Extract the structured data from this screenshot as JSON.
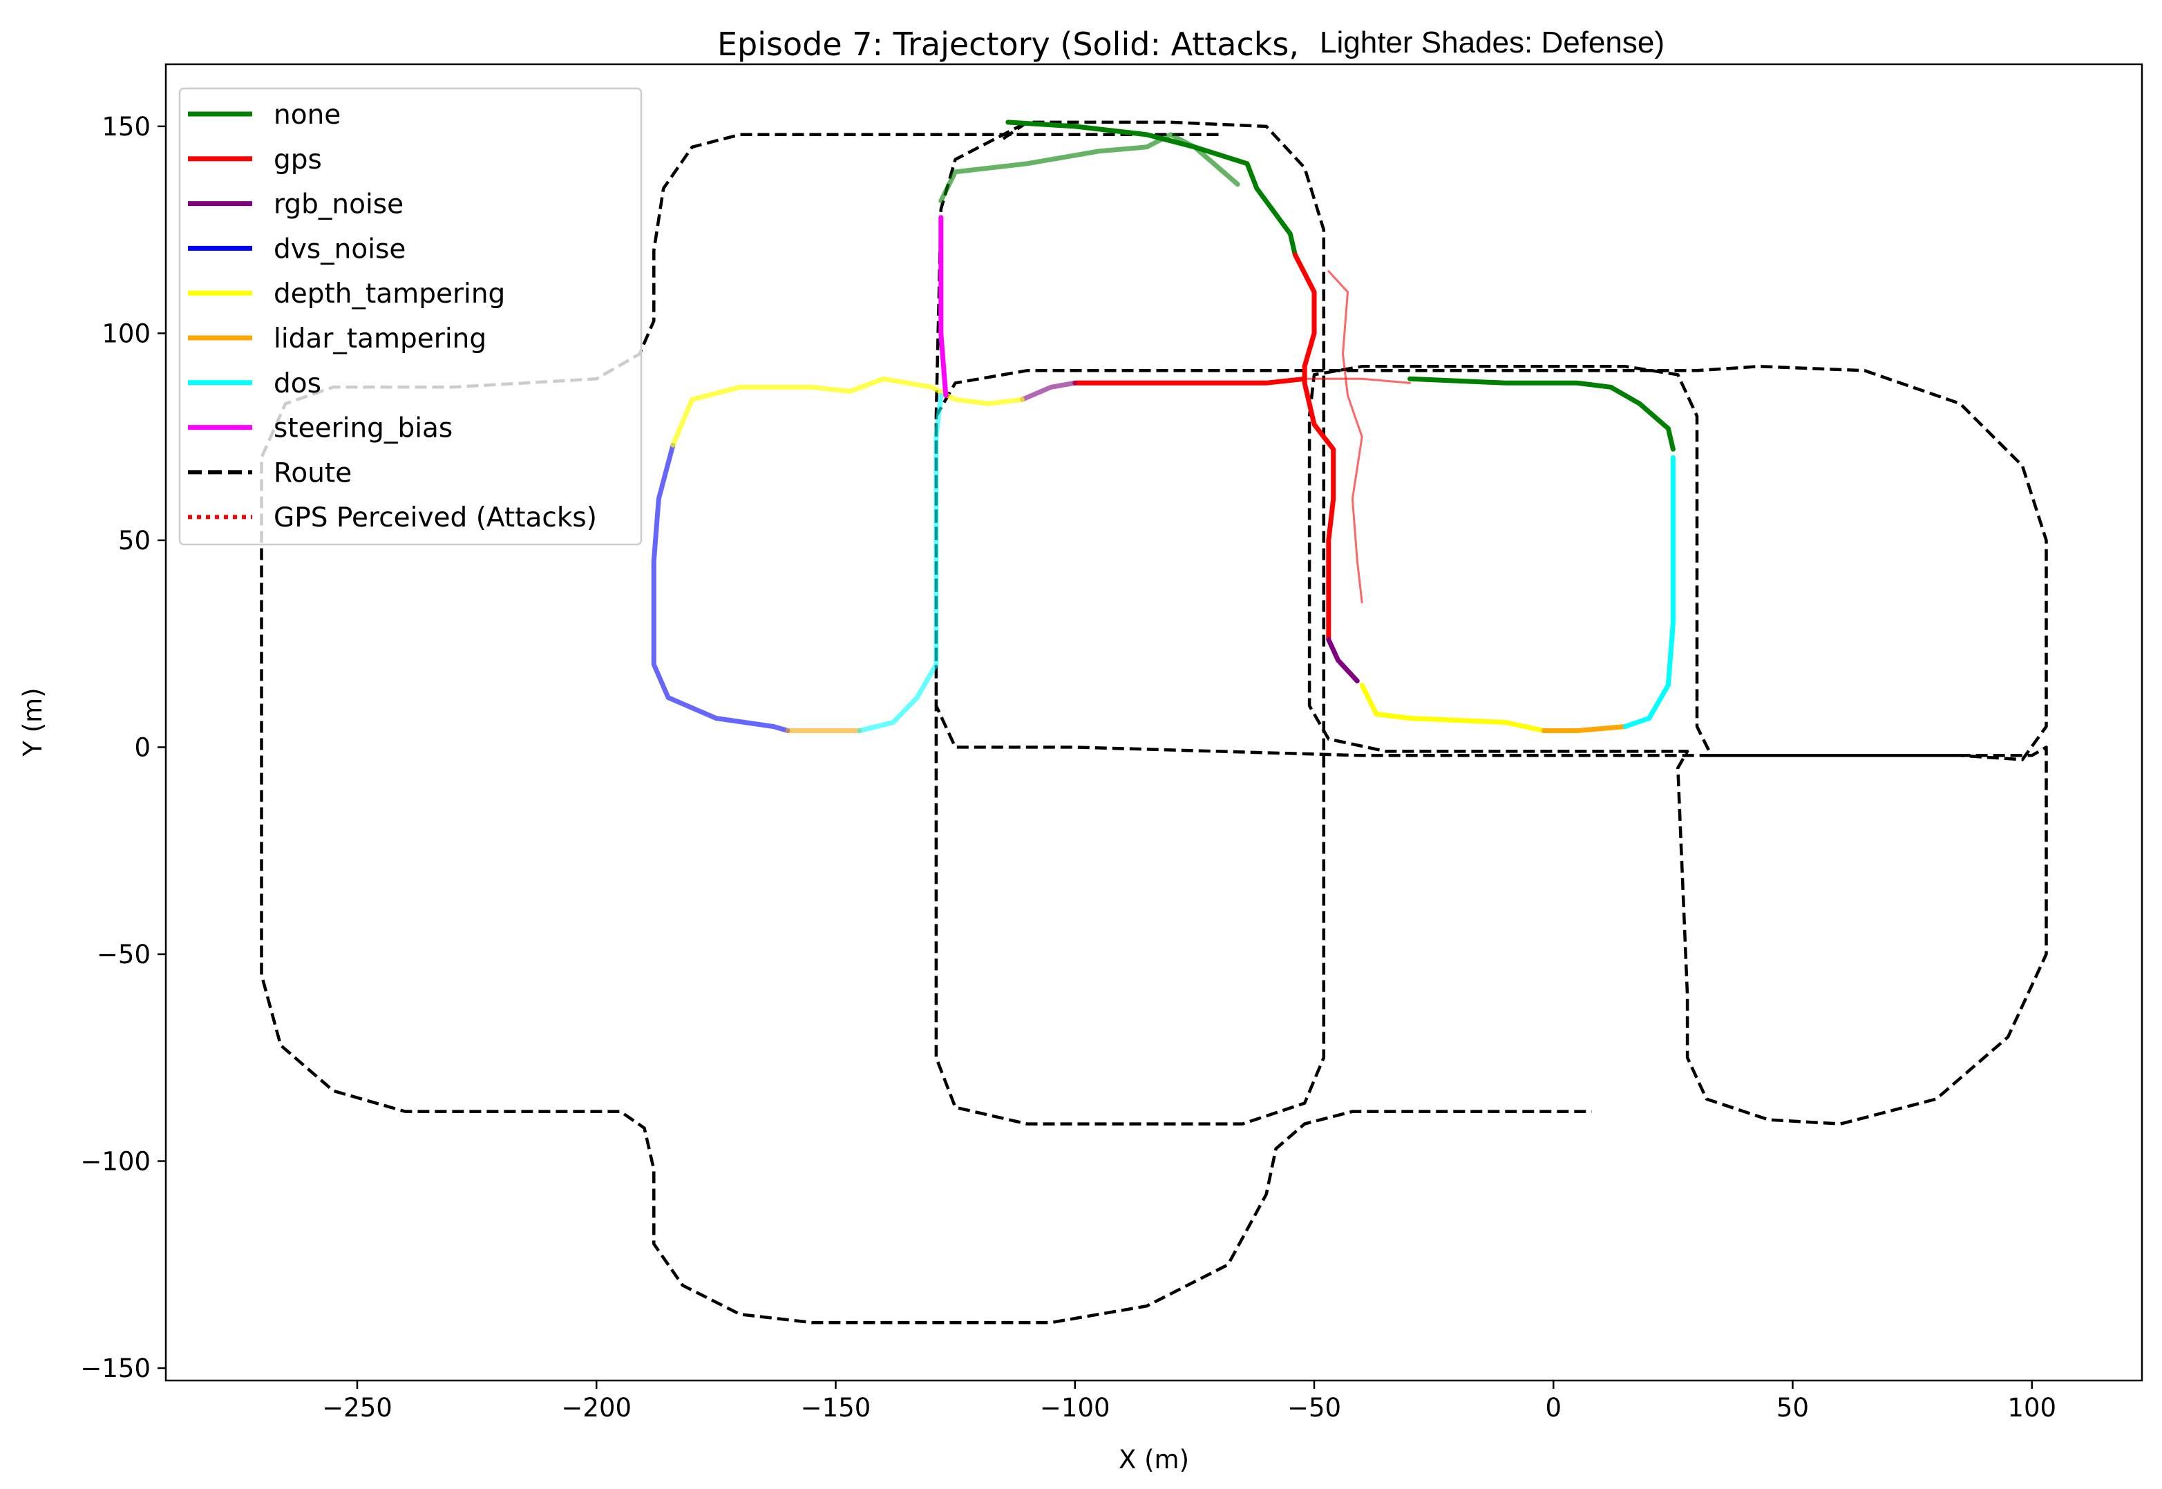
{
  "chart_data": {
    "type": "line",
    "title": "Episode 7: Trajectory (Solid: Attacks,",
    "title_suffix": "Lighter Shades: Defense)",
    "xlabel": "X (m)",
    "ylabel": "Y (m)",
    "xlim": [
      -290,
      123
    ],
    "ylim": [
      -153,
      165
    ],
    "grid": false,
    "legend_position": "upper-left",
    "x_ticks": [
      -250,
      -200,
      -150,
      -100,
      -50,
      0,
      50,
      100
    ],
    "y_ticks": [
      -150,
      -100,
      -50,
      0,
      50,
      100,
      150
    ],
    "x_tick_labels": [
      "−250",
      "−200",
      "−150",
      "−100",
      "−50",
      "0",
      "50",
      "100"
    ],
    "y_tick_labels": [
      "−150",
      "−100",
      "−50",
      "0",
      "50",
      "100",
      "150"
    ],
    "legend": [
      {
        "label": "none",
        "color": "#008000",
        "style": "solid"
      },
      {
        "label": "gps",
        "color": "#ff0000",
        "style": "solid"
      },
      {
        "label": "rgb_noise",
        "color": "#800080",
        "style": "solid"
      },
      {
        "label": "dvs_noise",
        "color": "#0000ff",
        "style": "solid"
      },
      {
        "label": "depth_tampering",
        "color": "#ffff00",
        "style": "solid"
      },
      {
        "label": "lidar_tampering",
        "color": "#ffa500",
        "style": "solid"
      },
      {
        "label": "dos",
        "color": "#00ffff",
        "style": "solid"
      },
      {
        "label": "steering_bias",
        "color": "#ff00ff",
        "style": "solid"
      },
      {
        "label": "Route",
        "color": "#000000",
        "style": "dashed"
      },
      {
        "label": "GPS Perceived (Attacks)",
        "color": "#ff0000",
        "style": "dotted"
      }
    ],
    "route": [
      [
        [
          -115,
          147
        ],
        [
          -110,
          151
        ],
        [
          -80,
          151
        ],
        [
          -60,
          150
        ],
        [
          -52,
          140
        ],
        [
          -48,
          125
        ],
        [
          -48,
          100
        ],
        [
          -48,
          -75
        ],
        [
          -52,
          -86
        ],
        [
          -65,
          -91
        ],
        [
          -110,
          -91
        ],
        [
          -125,
          -87
        ],
        [
          -129,
          -75
        ],
        [
          -129,
          80
        ],
        [
          -125,
          88
        ],
        [
          -110,
          91
        ],
        [
          30,
          91
        ],
        [
          43,
          92
        ],
        [
          65,
          91
        ],
        [
          85,
          83
        ],
        [
          98,
          68
        ],
        [
          103,
          50
        ],
        [
          103,
          5
        ],
        [
          98,
          -3
        ],
        [
          85,
          -2
        ],
        [
          40,
          -2
        ],
        [
          33,
          -2
        ],
        [
          30,
          5
        ],
        [
          30,
          80
        ],
        [
          26,
          90
        ],
        [
          15,
          92
        ],
        [
          -40,
          92
        ],
        [
          -50,
          90
        ],
        [
          -51,
          80
        ],
        [
          -51,
          10
        ],
        [
          -47,
          2
        ],
        [
          -35,
          -1
        ],
        [
          20,
          -1
        ],
        [
          28,
          -1
        ],
        [
          26,
          -5
        ],
        [
          28,
          -60
        ],
        [
          28,
          -75
        ],
        [
          32,
          -85
        ],
        [
          45,
          -90
        ],
        [
          60,
          -91
        ],
        [
          80,
          -85
        ],
        [
          95,
          -70
        ],
        [
          103,
          -50
        ],
        [
          103,
          0
        ],
        [
          100,
          -2
        ],
        [
          -40,
          -2
        ],
        [
          -100,
          0
        ],
        [
          -125,
          0
        ],
        [
          -129,
          10
        ],
        [
          -129,
          80
        ],
        [
          -128,
          130
        ],
        [
          -125,
          142
        ],
        [
          -110,
          151
        ]
      ],
      [
        [
          -70,
          148
        ],
        [
          -120,
          148
        ],
        [
          -170,
          148
        ],
        [
          -180,
          145
        ],
        [
          -186,
          135
        ],
        [
          -188,
          120
        ],
        [
          -188,
          103
        ],
        [
          -191,
          95
        ],
        [
          -200,
          89
        ],
        [
          -230,
          87
        ],
        [
          -255,
          87
        ],
        [
          -265,
          83
        ],
        [
          -270,
          70
        ],
        [
          -270,
          -55
        ],
        [
          -266,
          -72
        ],
        [
          -255,
          -83
        ],
        [
          -240,
          -88
        ],
        [
          -195,
          -88
        ],
        [
          -190,
          -92
        ],
        [
          -188,
          -102
        ],
        [
          -188,
          -120
        ],
        [
          -182,
          -130
        ],
        [
          -170,
          -137
        ],
        [
          -155,
          -139
        ],
        [
          -105,
          -139
        ],
        [
          -85,
          -135
        ],
        [
          -68,
          -125
        ],
        [
          -60,
          -108
        ],
        [
          -58,
          -97
        ],
        [
          -52,
          -91
        ],
        [
          -42,
          -88
        ],
        [
          8,
          -88
        ]
      ]
    ],
    "series": [
      {
        "name": "none",
        "color": "#008000",
        "opacity": 1,
        "points": [
          [
            -114,
            151
          ],
          [
            -100,
            150
          ],
          [
            -85,
            148
          ],
          [
            -75,
            145
          ],
          [
            -64,
            141
          ],
          [
            -62,
            135
          ],
          [
            -55,
            124
          ],
          [
            -54,
            119
          ]
        ]
      },
      {
        "name": "none",
        "color": "#008000",
        "opacity": 0.6,
        "points": [
          [
            -128,
            132
          ],
          [
            -125,
            139
          ],
          [
            -110,
            141
          ],
          [
            -95,
            144
          ],
          [
            -85,
            145
          ],
          [
            -80,
            148
          ],
          [
            -75,
            145
          ],
          [
            -66,
            136
          ]
        ]
      },
      {
        "name": "gps",
        "color": "#ff0000",
        "opacity": 1,
        "points": [
          [
            -54,
            119
          ],
          [
            -50,
            110
          ],
          [
            -50,
            100
          ],
          [
            -52,
            92
          ],
          [
            -52,
            88
          ],
          [
            -50,
            78
          ],
          [
            -48,
            75
          ],
          [
            -46,
            72
          ],
          [
            -46,
            60
          ],
          [
            -47,
            50
          ],
          [
            -47,
            30
          ],
          [
            -47,
            26
          ]
        ]
      },
      {
        "name": "gps",
        "color": "#ff0000",
        "opacity": 1,
        "points": [
          [
            -100,
            88
          ],
          [
            -60,
            88
          ],
          [
            -52,
            89
          ]
        ]
      },
      {
        "name": "gps",
        "color": "#ff0000",
        "opacity": 0.6,
        "points": [
          [
            -52,
            89
          ],
          [
            -40,
            89
          ],
          [
            -30,
            88
          ]
        ]
      },
      {
        "name": "gps",
        "color": "#ff0000",
        "opacity": 0.6,
        "points": [
          [
            -47,
            115
          ],
          [
            -43,
            110
          ],
          [
            -44,
            95
          ],
          [
            -43,
            85
          ],
          [
            -40,
            75
          ],
          [
            -42,
            60
          ],
          [
            -41,
            45
          ],
          [
            -40,
            35
          ]
        ]
      },
      {
        "name": "rgb_noise",
        "color": "#800080",
        "opacity": 1,
        "points": [
          [
            -47,
            26
          ],
          [
            -45,
            21
          ],
          [
            -41,
            16
          ]
        ]
      },
      {
        "name": "rgb_noise",
        "color": "#800080",
        "opacity": 0.6,
        "points": [
          [
            -111,
            84
          ],
          [
            -105,
            87
          ],
          [
            -100,
            88
          ]
        ]
      },
      {
        "name": "dvs_noise",
        "color": "#0000ff",
        "opacity": 0.6,
        "points": [
          [
            -184,
            73
          ],
          [
            -187,
            60
          ],
          [
            -188,
            45
          ],
          [
            -188,
            20
          ],
          [
            -185,
            12
          ],
          [
            -175,
            7
          ],
          [
            -163,
            5
          ],
          [
            -160,
            4
          ]
        ]
      },
      {
        "name": "depth_tampering",
        "color": "#ffff00",
        "opacity": 1,
        "points": [
          [
            -40,
            15
          ],
          [
            -37,
            8
          ],
          [
            -30,
            7
          ],
          [
            -10,
            6
          ],
          [
            -2,
            4
          ]
        ]
      },
      {
        "name": "depth_tampering",
        "color": "#ffff00",
        "opacity": 0.7,
        "points": [
          [
            -184,
            73
          ],
          [
            -180,
            84
          ],
          [
            -170,
            87
          ],
          [
            -155,
            87
          ],
          [
            -147,
            86
          ],
          [
            -140,
            89
          ],
          [
            -130,
            87
          ],
          [
            -125,
            84
          ],
          [
            -118,
            83
          ],
          [
            -111,
            84
          ]
        ]
      },
      {
        "name": "lidar_tampering",
        "color": "#ffa500",
        "opacity": 1,
        "points": [
          [
            -2,
            4
          ],
          [
            5,
            4
          ],
          [
            15,
            5
          ]
        ]
      },
      {
        "name": "lidar_tampering",
        "color": "#ffa500",
        "opacity": 0.6,
        "points": [
          [
            -160,
            4
          ],
          [
            -150,
            4
          ],
          [
            -145,
            4
          ]
        ]
      },
      {
        "name": "dos",
        "color": "#00ffff",
        "opacity": 1,
        "points": [
          [
            15,
            5
          ],
          [
            20,
            7
          ],
          [
            24,
            15
          ],
          [
            25,
            30
          ],
          [
            25,
            50
          ],
          [
            25,
            70
          ]
        ]
      },
      {
        "name": "dos",
        "color": "#00ffff",
        "opacity": 0.6,
        "points": [
          [
            -145,
            4
          ],
          [
            -138,
            6
          ],
          [
            -133,
            12
          ],
          [
            -129,
            20
          ],
          [
            -129,
            50
          ],
          [
            -129,
            75
          ],
          [
            -128,
            85
          ]
        ]
      },
      {
        "name": "steering_bias",
        "color": "#ff00ff",
        "opacity": 1,
        "points": [
          [
            -128,
            128
          ],
          [
            -128,
            100
          ],
          [
            -127,
            85
          ]
        ]
      },
      {
        "name": "none",
        "color": "#008000",
        "opacity": 1,
        "points": [
          [
            -30,
            89
          ],
          [
            -10,
            88
          ],
          [
            5,
            88
          ],
          [
            12,
            87
          ],
          [
            18,
            83
          ],
          [
            24,
            77
          ],
          [
            25,
            72
          ]
        ]
      }
    ]
  }
}
